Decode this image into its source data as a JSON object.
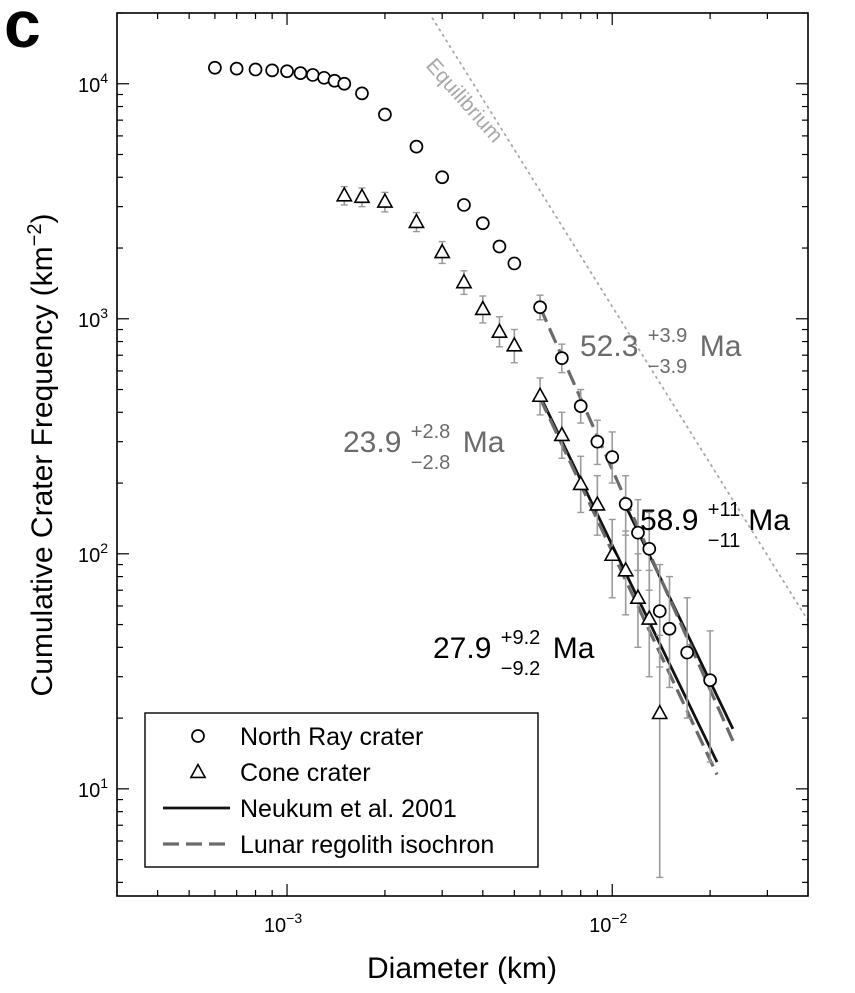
{
  "panel_label": "c",
  "chart_data": {
    "type": "scatter",
    "xscale": "log",
    "yscale": "log",
    "xlim": [
      0.0003,
      0.04
    ],
    "ylim": [
      3.5,
      20000
    ],
    "xlabel": "Diameter (km)",
    "ylabel": "Cumulative Crater Frequency (km",
    "ylabel_sup": "−2",
    "ylabel_end": ")",
    "xticks": [
      {
        "value": 0.001,
        "base": "10",
        "exp": "−3"
      },
      {
        "value": 0.01,
        "base": "10",
        "exp": "−2"
      }
    ],
    "yticks": [
      {
        "value": 10,
        "base": "10",
        "exp": "1"
      },
      {
        "value": 100,
        "base": "10",
        "exp": "2"
      },
      {
        "value": 1000,
        "base": "10",
        "exp": "3"
      },
      {
        "value": 10000,
        "base": "10",
        "exp": "4"
      }
    ],
    "series": [
      {
        "name": "North Ray crater",
        "marker": "circle",
        "points": [
          {
            "x": 0.0006,
            "y": 11700
          },
          {
            "x": 0.0007,
            "y": 11600
          },
          {
            "x": 0.0008,
            "y": 11500
          },
          {
            "x": 0.0009,
            "y": 11400
          },
          {
            "x": 0.001,
            "y": 11300
          },
          {
            "x": 0.0011,
            "y": 11100
          },
          {
            "x": 0.0012,
            "y": 10900
          },
          {
            "x": 0.0013,
            "y": 10600
          },
          {
            "x": 0.0014,
            "y": 10300
          },
          {
            "x": 0.0015,
            "y": 10000
          },
          {
            "x": 0.0017,
            "y": 9100
          },
          {
            "x": 0.002,
            "y": 7400
          },
          {
            "x": 0.0025,
            "y": 5400
          },
          {
            "x": 0.003,
            "y": 4000
          },
          {
            "x": 0.0035,
            "y": 3050
          },
          {
            "x": 0.004,
            "y": 2550
          },
          {
            "x": 0.0045,
            "y": 2030
          },
          {
            "x": 0.005,
            "y": 1720
          },
          {
            "x": 0.006,
            "y": 1120,
            "err": [
              990,
              1260
            ]
          },
          {
            "x": 0.007,
            "y": 680,
            "err": [
              590,
              780
            ]
          },
          {
            "x": 0.008,
            "y": 425,
            "err": [
              360,
              500
            ]
          },
          {
            "x": 0.009,
            "y": 300,
            "err": [
              240,
              370
            ]
          },
          {
            "x": 0.01,
            "y": 258,
            "err": [
              200,
              330
            ]
          },
          {
            "x": 0.011,
            "y": 163,
            "err": [
              120,
              215
            ]
          },
          {
            "x": 0.012,
            "y": 123,
            "err": [
              85,
              170
            ]
          },
          {
            "x": 0.013,
            "y": 105,
            "err": [
              70,
              150
            ]
          },
          {
            "x": 0.014,
            "y": 57,
            "err": [
              33,
              90
            ]
          },
          {
            "x": 0.015,
            "y": 48,
            "err": [
              27,
              80
            ]
          },
          {
            "x": 0.017,
            "y": 38,
            "err": [
              20,
              65
            ]
          },
          {
            "x": 0.02,
            "y": 29,
            "err": [
              13,
              47
            ]
          }
        ]
      },
      {
        "name": "Cone crater",
        "marker": "triangle",
        "points": [
          {
            "x": 0.0015,
            "y": 3350,
            "err": [
              3050,
              3650
            ]
          },
          {
            "x": 0.0017,
            "y": 3300,
            "err": [
              3000,
              3600
            ]
          },
          {
            "x": 0.002,
            "y": 3150,
            "err": [
              2850,
              3450
            ]
          },
          {
            "x": 0.0025,
            "y": 2580,
            "err": [
              2350,
              2830
            ]
          },
          {
            "x": 0.003,
            "y": 1920,
            "err": [
              1720,
              2130
            ]
          },
          {
            "x": 0.0035,
            "y": 1430,
            "err": [
              1270,
              1600
            ]
          },
          {
            "x": 0.004,
            "y": 1100,
            "err": [
              960,
              1250
            ]
          },
          {
            "x": 0.0045,
            "y": 880,
            "err": [
              760,
              1020
            ]
          },
          {
            "x": 0.005,
            "y": 770,
            "err": [
              650,
              900
            ]
          },
          {
            "x": 0.006,
            "y": 470,
            "err": [
              390,
              560
            ]
          },
          {
            "x": 0.007,
            "y": 320,
            "err": [
              255,
              400
            ]
          },
          {
            "x": 0.008,
            "y": 198,
            "err": [
              150,
              260
            ]
          },
          {
            "x": 0.009,
            "y": 162,
            "err": [
              120,
              215
            ]
          },
          {
            "x": 0.01,
            "y": 99,
            "err": [
              65,
              140
            ]
          },
          {
            "x": 0.011,
            "y": 85,
            "err": [
              55,
              125
            ]
          },
          {
            "x": 0.012,
            "y": 65,
            "err": [
              40,
              100
            ]
          },
          {
            "x": 0.013,
            "y": 53,
            "err": [
              30,
              85
            ]
          },
          {
            "x": 0.014,
            "y": 21,
            "err": [
              4.2,
              45
            ]
          }
        ]
      }
    ],
    "fits": [
      {
        "name": "Neukum et al. 2001",
        "style": "solid",
        "color": "#111111",
        "x": [
          0.011,
          0.0235
        ],
        "y": [
          160,
          18
        ]
      },
      {
        "name": "Neukum et al. 2001",
        "style": "solid",
        "color": "#111111",
        "x": [
          0.006,
          0.021
        ],
        "y": [
          470,
          13
        ]
      },
      {
        "name": "Lunar regolith isochron",
        "style": "dashed",
        "color": "#6a6a6a",
        "x": [
          0.006,
          0.0235
        ],
        "y": [
          1120,
          16
        ]
      },
      {
        "name": "Lunar regolith isochron",
        "style": "dashed",
        "color": "#6a6a6a",
        "x": [
          0.006,
          0.021
        ],
        "y": [
          460,
          11.5
        ]
      }
    ],
    "equilibrium": {
      "label": "Equilibrium",
      "color": "#a8a8a8",
      "x": [
        0.0028,
        0.04
      ],
      "y": [
        19000,
        52
      ]
    },
    "age_annotations": [
      {
        "value": "52.3",
        "sup": "+3.9",
        "sub": "−3.9",
        "unit": "Ma",
        "color": "#6b6b6b"
      },
      {
        "value": "23.9",
        "sup": "+2.8",
        "sub": "−2.8",
        "unit": "Ma",
        "color": "#6b6b6b"
      },
      {
        "value": "58.9",
        "sup": "+11",
        "sub": "−11",
        "unit": "Ma",
        "color": "#000000"
      },
      {
        "value": "27.9",
        "sup": "+9.2",
        "sub": "−9.2",
        "unit": "Ma",
        "color": "#000000"
      }
    ],
    "legend": {
      "position": "bottom-left",
      "entries": [
        {
          "label": "North Ray crater",
          "symbol": "circle"
        },
        {
          "label": "Cone crater",
          "symbol": "triangle"
        },
        {
          "label": "Neukum et al. 2001",
          "symbol": "solid-line"
        },
        {
          "label": "Lunar regolith isochron",
          "symbol": "dashed-line"
        }
      ]
    }
  }
}
